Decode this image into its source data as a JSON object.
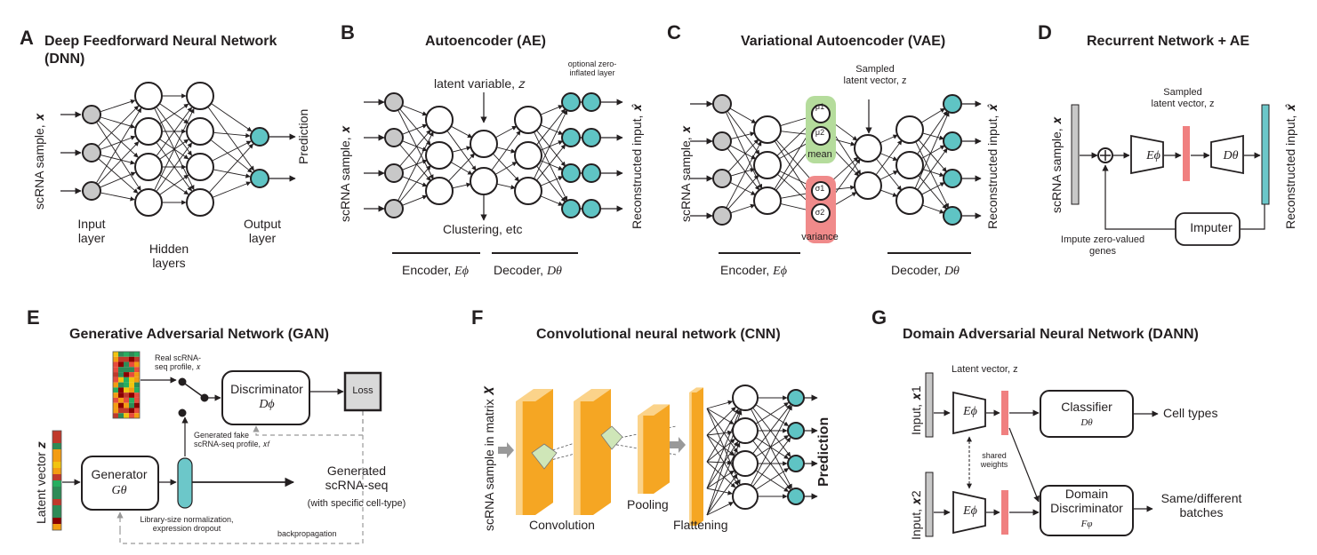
{
  "panels": {
    "A": {
      "letter": "A",
      "title_l1": "Deep Feedforward Neural Network",
      "title_l2": "(DNN)",
      "input_axis": "scRNA sample, 𝒙",
      "input_layer": "Input\nlayer",
      "hidden_layers": "Hidden\nlayers",
      "output_layer": "Output\nlayer",
      "prediction": "Prediction"
    },
    "B": {
      "letter": "B",
      "title": "Autoencoder (AE)",
      "latent": "latent variable, 𝑧",
      "zero_inflated": "optional zero-\ninflated layer",
      "input_axis": "scRNA sample, 𝒙",
      "output_axis": "Reconstructed input, 𝒙̂",
      "clustering": "Clustering, etc",
      "encoder": "Encoder, ",
      "encoder_sym": "Eϕ",
      "decoder": "Decoder, ",
      "decoder_sym": "Dθ"
    },
    "C": {
      "letter": "C",
      "title": "Variational Autoencoder (VAE)",
      "sampled": "Sampled\nlatent vector, z",
      "input_axis": "scRNA sample, 𝒙",
      "output_axis": "Reconstructed input, 𝒙̂",
      "mu1": "μ1",
      "mu2": "μ2",
      "sig1": "σ1",
      "sig2": "σ2",
      "mean": "mean",
      "variance": "variance",
      "encoder": "Encoder, ",
      "encoder_sym": "Eϕ",
      "decoder": "Decoder, ",
      "decoder_sym": "Dθ"
    },
    "D": {
      "letter": "D",
      "title": "Recurrent Network + AE",
      "sampled": "Sampled\nlatent vector, z",
      "input_axis": "scRNA sample, 𝒙",
      "output_axis": "Reconstructed input, 𝒙̂",
      "enc": "Eϕ",
      "dec": "Dθ",
      "imputer": "Imputer",
      "impute_genes": "Impute zero-valued\ngenes"
    },
    "E": {
      "letter": "E",
      "title": "Generative Adversarial Network (GAN)",
      "real_profile": "Real scRNA-\nseq profile, 𝑥",
      "discriminator": "Discriminator",
      "disc_sym": "Dϕ",
      "loss": "Loss",
      "latent": "Latent vector 𝒛",
      "generator": "Generator",
      "gen_sym": "Gθ",
      "fake_profile": "Generated fake\nscRNA-seq profile, 𝑥𝑓",
      "generated": "Generated\nscRNA-seq",
      "specific": "(with specific cell-type)",
      "libsize": "Library-size normalization,\nexpression dropout",
      "backprop": "backpropagation"
    },
    "F": {
      "letter": "F",
      "title": "Convolutional neural network (CNN)",
      "input_axis": "scRNA sample in matrix 𝑿",
      "convolution": "Convolution",
      "pooling": "Pooling",
      "flattening": "Flattening",
      "prediction": "Prediction"
    },
    "G": {
      "letter": "G",
      "title": "Domain Adversarial Neural Network (DANN)",
      "latent": "Latent vector, z",
      "input1": "Input, 𝒙1",
      "input2": "Input, 𝒙2",
      "enc": "Eϕ",
      "shared": "shared\nweights",
      "classifier": "Classifier",
      "class_sym": "Dθ",
      "cell_types": "Cell types",
      "domain_disc": "Domain\nDiscriminator",
      "dd_sym": "Fφ",
      "batches": "Same/different\nbatches"
    }
  },
  "colors": {
    "gray_node": "#c8c8c8",
    "teal_node": "#5fc4c4",
    "mean_box": "#b5dc9c",
    "var_box": "#f08a8a",
    "red_bar": "#f08080",
    "orange": "#f5a623",
    "orange_light": "#fbd38a",
    "teal_bar": "#6cc7c9"
  },
  "heatmap_colors": [
    "#c0392b",
    "#e74c3c",
    "#27ae60",
    "#f1c40f",
    "#f39c12",
    "#2e8b57",
    "#8b0000"
  ]
}
